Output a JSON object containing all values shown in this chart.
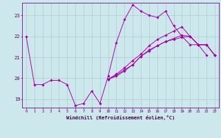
{
  "xlabel": "Windchill (Refroidissement éolien,°C)",
  "background_color": "#cce8ec",
  "grid_color": "#aacccc",
  "line_color": "#aa00aa",
  "spine_color": "#7700aa",
  "x_ticks": [
    0,
    1,
    2,
    3,
    4,
    5,
    6,
    7,
    8,
    9,
    10,
    11,
    12,
    13,
    14,
    15,
    16,
    17,
    18,
    19,
    20,
    21,
    22,
    23
  ],
  "y_ticks": [
    19,
    20,
    21,
    22,
    23
  ],
  "ylim": [
    18.6,
    23.6
  ],
  "xlim": [
    -0.5,
    23.5
  ],
  "series": [
    [
      22.0,
      19.7,
      19.7,
      19.9,
      19.9,
      19.7,
      18.7,
      18.8,
      19.4,
      18.8,
      20.1,
      21.7,
      22.8,
      23.5,
      23.2,
      23.0,
      22.9,
      23.2,
      22.5,
      22.0,
      21.6,
      21.6,
      21.1,
      null
    ],
    [
      null,
      null,
      null,
      null,
      null,
      null,
      null,
      null,
      null,
      null,
      19.95,
      20.15,
      20.4,
      20.65,
      21.05,
      21.3,
      21.55,
      21.75,
      21.9,
      22.05,
      22.0,
      21.6,
      21.6,
      21.1
    ],
    [
      null,
      null,
      null,
      null,
      null,
      null,
      null,
      null,
      null,
      null,
      19.95,
      20.2,
      20.5,
      20.85,
      21.15,
      21.55,
      21.85,
      22.05,
      22.25,
      22.45,
      22.0,
      21.6,
      21.6,
      21.1
    ],
    [
      null,
      null,
      null,
      null,
      null,
      null,
      null,
      null,
      null,
      null,
      19.95,
      20.1,
      20.35,
      20.65,
      21.05,
      21.35,
      21.55,
      21.75,
      21.85,
      21.95,
      22.0,
      21.6,
      21.6,
      21.1
    ]
  ]
}
